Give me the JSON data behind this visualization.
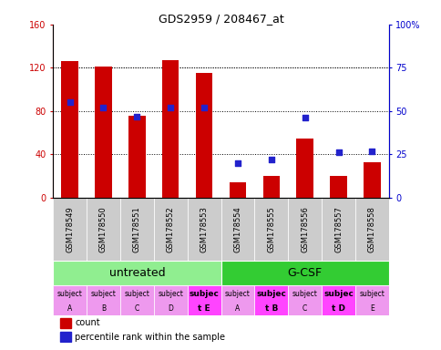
{
  "title": "GDS2959 / 208467_at",
  "samples": [
    "GSM178549",
    "GSM178550",
    "GSM178551",
    "GSM178552",
    "GSM178553",
    "GSM178554",
    "GSM178555",
    "GSM178556",
    "GSM178557",
    "GSM178558"
  ],
  "counts": [
    126,
    121,
    76,
    127,
    115,
    14,
    20,
    55,
    20,
    33
  ],
  "percentile": [
    55,
    52,
    47,
    52,
    52,
    20,
    22,
    46,
    26,
    27
  ],
  "ylim_left": [
    0,
    160
  ],
  "ylim_right": [
    0,
    100
  ],
  "yticks_left": [
    0,
    40,
    80,
    120,
    160
  ],
  "ytick_labels_left": [
    "0",
    "40",
    "80",
    "120",
    "160"
  ],
  "yticks_right": [
    0,
    25,
    50,
    75,
    100
  ],
  "ytick_labels_right": [
    "0",
    "25",
    "50",
    "75",
    "100%"
  ],
  "agent_groups": [
    {
      "label": "untreated",
      "start": 0,
      "end": 5,
      "color": "#90EE90"
    },
    {
      "label": "G-CSF",
      "start": 5,
      "end": 10,
      "color": "#33CC33"
    }
  ],
  "individual_labels_line1": [
    "subject",
    "subject",
    "subject",
    "subject",
    "subjec",
    "subject",
    "subjec",
    "subject",
    "subjec",
    "subject"
  ],
  "individual_labels_line2": [
    "A",
    "B",
    "C",
    "D",
    "t E",
    "A",
    "t B",
    "C",
    "t D",
    "E"
  ],
  "individual_colors": [
    "#EE99EE",
    "#EE99EE",
    "#EE99EE",
    "#EE99EE",
    "#FF44FF",
    "#EE99EE",
    "#FF44FF",
    "#EE99EE",
    "#FF44FF",
    "#EE99EE"
  ],
  "individual_bold": [
    false,
    false,
    false,
    false,
    true,
    false,
    true,
    false,
    true,
    false
  ],
  "bar_color": "#CC0000",
  "dot_color": "#2222CC",
  "sample_bg_color": "#CCCCCC",
  "bar_width": 0.5,
  "grid_yticks": [
    40,
    80,
    120
  ],
  "dot_grid_yticks": [
    75
  ],
  "agent_label_fontsize": 9,
  "indiv_fontsize1": 5.5,
  "indiv_fontsize2": 6.5,
  "sample_fontsize": 6,
  "title_fontsize": 9
}
